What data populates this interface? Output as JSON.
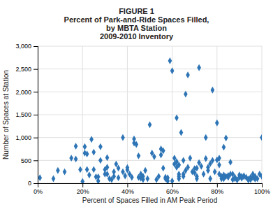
{
  "chart_data": {
    "type": "scatter",
    "title": [
      "FIGURE 1",
      "Percent of Park-and-Ride Spaces Filled,",
      "by MBTA Station",
      "2009-2010 Inventory"
    ],
    "xlabel": "Percent of Spaces Filled in AM Peak Period",
    "ylabel": "Number of Spaces at Station",
    "xlim": [
      0,
      1.0
    ],
    "ylim": [
      0,
      3000
    ],
    "xticks": [
      {
        "value": 0,
        "label": "0%"
      },
      {
        "value": 0.2,
        "label": "20%"
      },
      {
        "value": 0.4,
        "label": "40%"
      },
      {
        "value": 0.6,
        "label": "60%"
      },
      {
        "value": 0.8,
        "label": "80%"
      },
      {
        "value": 1.0,
        "label": "100%"
      }
    ],
    "yticks": [
      0,
      500,
      {
        "value": 1000,
        "label": "1,000"
      },
      {
        "value": 1500,
        "label": "1,500"
      },
      {
        "value": 2000,
        "label": "2,000"
      },
      {
        "value": 2500,
        "label": "2,500"
      },
      {
        "value": 3000,
        "label": "3,000"
      }
    ],
    "grid": true,
    "marker": "diamond",
    "color": "#2E75B6",
    "x": [
      0.01,
      0.07,
      0.09,
      0.12,
      0.15,
      0.17,
      0.17,
      0.19,
      0.2,
      0.21,
      0.21,
      0.22,
      0.22,
      0.23,
      0.24,
      0.25,
      0.25,
      0.26,
      0.27,
      0.27,
      0.28,
      0.28,
      0.3,
      0.3,
      0.31,
      0.31,
      0.31,
      0.32,
      0.33,
      0.34,
      0.34,
      0.35,
      0.36,
      0.36,
      0.38,
      0.38,
      0.39,
      0.4,
      0.4,
      0.41,
      0.42,
      0.43,
      0.43,
      0.44,
      0.45,
      0.45,
      0.46,
      0.46,
      0.47,
      0.47,
      0.48,
      0.49,
      0.5,
      0.51,
      0.52,
      0.53,
      0.54,
      0.55,
      0.55,
      0.56,
      0.56,
      0.57,
      0.57,
      0.58,
      0.58,
      0.59,
      0.6,
      0.6,
      0.61,
      0.61,
      0.62,
      0.62,
      0.62,
      0.63,
      0.63,
      0.63,
      0.63,
      0.64,
      0.65,
      0.65,
      0.65,
      0.66,
      0.66,
      0.67,
      0.67,
      0.68,
      0.69,
      0.7,
      0.7,
      0.71,
      0.71,
      0.71,
      0.72,
      0.72,
      0.73,
      0.74,
      0.75,
      0.75,
      0.76,
      0.76,
      0.77,
      0.77,
      0.78,
      0.78,
      0.79,
      0.8,
      0.8,
      0.81,
      0.81,
      0.81,
      0.82,
      0.82,
      0.83,
      0.83,
      0.83,
      0.84,
      0.84,
      0.85,
      0.85,
      0.86,
      0.86,
      0.87,
      0.87,
      0.88,
      0.88,
      0.89,
      0.9,
      0.9,
      0.91,
      0.91,
      0.92,
      0.92,
      0.93,
      0.94,
      0.94,
      0.95,
      0.95,
      0.96,
      0.96,
      0.97,
      0.97,
      0.98,
      0.99,
      1.0,
      1.0
    ],
    "values": [
      120,
      100,
      280,
      250,
      550,
      810,
      530,
      300,
      40,
      800,
      660,
      640,
      300,
      180,
      960,
      300,
      680,
      140,
      140,
      50,
      800,
      500,
      200,
      300,
      560,
      200,
      350,
      100,
      80,
      150,
      250,
      420,
      330,
      120,
      1000,
      250,
      160,
      340,
      290,
      200,
      130,
      970,
      880,
      850,
      600,
      130,
      110,
      200,
      80,
      150,
      280,
      100,
      1280,
      660,
      580,
      80,
      150,
      620,
      750,
      710,
      330,
      130,
      100,
      50,
      120,
      2680,
      50,
      2460,
      420,
      550,
      1430,
      350,
      470,
      100,
      200,
      400,
      150,
      1110,
      500,
      150,
      200,
      1950,
      280,
      2370,
      350,
      550,
      250,
      230,
      320,
      330,
      150,
      100,
      2530,
      450,
      370,
      200,
      1000,
      540,
      350,
      280,
      430,
      100,
      2040,
      500,
      250,
      510,
      1320,
      400,
      200,
      550,
      150,
      100,
      790,
      100,
      180,
      990,
      150,
      170,
      130,
      460,
      200,
      80,
      200,
      100,
      130,
      70,
      180,
      130,
      150,
      110,
      160,
      140,
      130,
      90,
      70,
      130,
      80,
      120,
      200,
      90,
      150,
      100,
      200,
      1000,
      150
    ]
  }
}
